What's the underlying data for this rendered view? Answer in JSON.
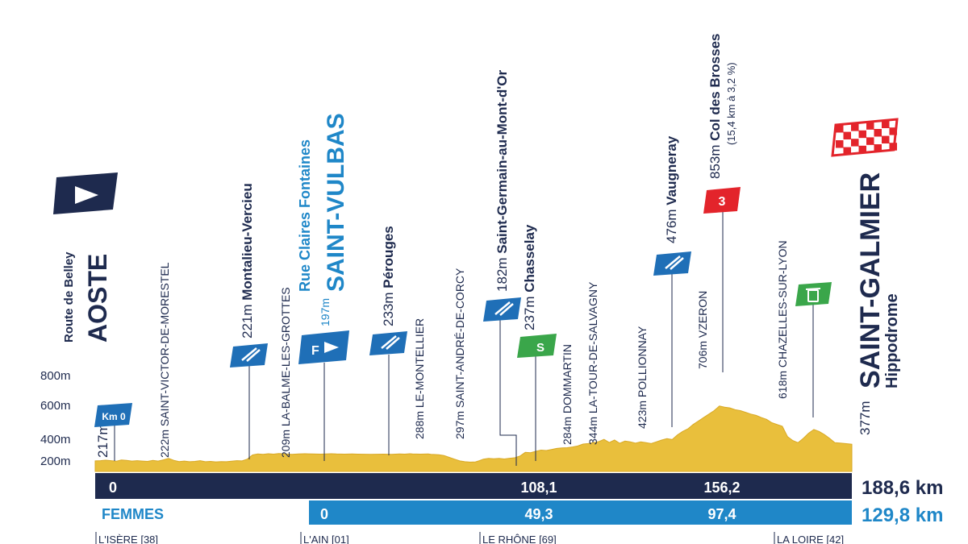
{
  "chart_data": {
    "type": "area",
    "y_ticks": [
      "200m",
      "400m",
      "600m",
      "800m"
    ],
    "ylim": [
      100,
      1000
    ],
    "xlim": [
      0,
      188.6
    ],
    "profile": [
      [
        0,
        220
      ],
      [
        4,
        222
      ],
      [
        8,
        228
      ],
      [
        12,
        222
      ],
      [
        16,
        216
      ],
      [
        20,
        230
      ],
      [
        24,
        226
      ],
      [
        28,
        218
      ],
      [
        32,
        222
      ],
      [
        36,
        218
      ],
      [
        40,
        214
      ],
      [
        44,
        226
      ],
      [
        48,
        218
      ],
      [
        52,
        232
      ],
      [
        56,
        248
      ],
      [
        60,
        226
      ],
      [
        64,
        212
      ],
      [
        68,
        218
      ],
      [
        72,
        210
      ],
      [
        76,
        214
      ],
      [
        80,
        222
      ],
      [
        84,
        210
      ],
      [
        88,
        214
      ],
      [
        92,
        208
      ],
      [
        96,
        212
      ],
      [
        100,
        210
      ],
      [
        104,
        216
      ],
      [
        108,
        222
      ],
      [
        112,
        220
      ],
      [
        116,
        240
      ],
      [
        120,
        288
      ],
      [
        124,
        300
      ],
      [
        128,
        296
      ],
      [
        132,
        302
      ],
      [
        136,
        298
      ],
      [
        140,
        304
      ],
      [
        145,
        300
      ],
      [
        150,
        296
      ],
      [
        155,
        300
      ],
      [
        160,
        302
      ],
      [
        166,
        300
      ],
      [
        172,
        298
      ],
      [
        176,
        300
      ],
      [
        180,
        302
      ],
      [
        184,
        300
      ],
      [
        190,
        298
      ],
      [
        196,
        300
      ],
      [
        200,
        298
      ],
      [
        210,
        296
      ],
      [
        220,
        298
      ],
      [
        226,
        296
      ],
      [
        232,
        300
      ],
      [
        236,
        298
      ],
      [
        240,
        302
      ],
      [
        242,
        300
      ],
      [
        248,
        298
      ],
      [
        254,
        300
      ],
      [
        256,
        296
      ],
      [
        258,
        294
      ],
      [
        262,
        290
      ],
      [
        266,
        282
      ],
      [
        270,
        260
      ],
      [
        274,
        240
      ],
      [
        278,
        220
      ],
      [
        282,
        210
      ],
      [
        286,
        206
      ],
      [
        290,
        208
      ],
      [
        293,
        222
      ],
      [
        296,
        240
      ],
      [
        300,
        248
      ],
      [
        304,
        244
      ],
      [
        308,
        248
      ],
      [
        312,
        242
      ],
      [
        316,
        250
      ],
      [
        320,
        256
      ],
      [
        324,
        276
      ],
      [
        328,
        318
      ],
      [
        332,
        314
      ],
      [
        336,
        330
      ],
      [
        340,
        344
      ],
      [
        344,
        340
      ],
      [
        348,
        352
      ],
      [
        352,
        364
      ],
      [
        356,
        370
      ],
      [
        360,
        372
      ],
      [
        364,
        380
      ],
      [
        368,
        392
      ],
      [
        372,
        414
      ],
      [
        376,
        420
      ],
      [
        380,
        432
      ],
      [
        384,
        442
      ],
      [
        388,
        468
      ],
      [
        392,
        432
      ],
      [
        396,
        460
      ],
      [
        400,
        423
      ],
      [
        404,
        448
      ],
      [
        408,
        440
      ],
      [
        412,
        425
      ],
      [
        416,
        440
      ],
      [
        420,
        430
      ],
      [
        424,
        420
      ],
      [
        428,
        440
      ],
      [
        432,
        460
      ],
      [
        436,
        476
      ],
      [
        440,
        466
      ],
      [
        444,
        520
      ],
      [
        448,
        560
      ],
      [
        452,
        590
      ],
      [
        456,
        640
      ],
      [
        460,
        680
      ],
      [
        464,
        720
      ],
      [
        468,
        760
      ],
      [
        472,
        800
      ],
      [
        476,
        853
      ],
      [
        480,
        840
      ],
      [
        484,
        832
      ],
      [
        488,
        810
      ],
      [
        492,
        800
      ],
      [
        496,
        780
      ],
      [
        500,
        760
      ],
      [
        504,
        745
      ],
      [
        508,
        720
      ],
      [
        512,
        700
      ],
      [
        516,
        660
      ],
      [
        520,
        640
      ],
      [
        524,
        620
      ],
      [
        528,
        500
      ],
      [
        532,
        455
      ],
      [
        536,
        430
      ],
      [
        540,
        480
      ],
      [
        544,
        540
      ],
      [
        548,
        582
      ],
      [
        552,
        560
      ],
      [
        556,
        524
      ],
      [
        560,
        480
      ],
      [
        564,
        430
      ],
      [
        568,
        425
      ],
      [
        572,
        420
      ],
      [
        577,
        412
      ]
    ],
    "profile_x_scale": [
      0,
      577,
      0,
      188.6
    ],
    "places": [
      {
        "km": 0,
        "alt_label": "217m",
        "name": "AOSTE",
        "sub": "Route de Belley"
      },
      {
        "km": 8,
        "alt_label": "222m",
        "name": "SAINT-VICTOR-DE-MORESTEL"
      },
      {
        "km": 18,
        "alt_label": "221m",
        "name": "Montalieu-Vercieu"
      },
      {
        "km": 23,
        "alt_label": "209m",
        "name": "LA-BALME-LES-GROTTES"
      },
      {
        "km": 28,
        "alt_label": "197m",
        "name": "SAINT-VULBAS",
        "sub": "Rue Claires Fontaines"
      },
      {
        "km": 35,
        "alt_label": "233m",
        "name": "Pérouges"
      },
      {
        "km": 42,
        "alt_label": "288m",
        "name": "LE-MONTELLIER"
      },
      {
        "km": 54,
        "alt_label": "297m",
        "name": "SAINT-ANDRÉ-DE-CORCY"
      },
      {
        "km": 80,
        "alt_label": "182m",
        "name": "Saint-Germain-au-Mont-d'Or"
      },
      {
        "km": 86,
        "alt_label": "237m",
        "name": "Chasselay"
      },
      {
        "km": 94,
        "alt_label": "284m",
        "name": "DOMMARTIN"
      },
      {
        "km": 100,
        "alt_label": "344m",
        "name": "LA-TOUR-DE-SALVAGNY"
      },
      {
        "km": 110,
        "alt_label": "423m",
        "name": "POLLIONNAY"
      },
      {
        "km": 116,
        "alt_label": "476m",
        "name": "Vaugneray"
      },
      {
        "km": 127,
        "alt_label": "706m",
        "name": "VZERON"
      },
      {
        "km": 134,
        "alt_label": "853m",
        "name": "Col des Brosses",
        "sub": "(15,4 km à 3,2 %)"
      },
      {
        "km": 156.2,
        "alt_label": "618m",
        "name": "CHAZELLES-SUR-LYON"
      },
      {
        "km": 188.6,
        "alt_label": "377m",
        "name": "SAINT-GALMIER",
        "sub": "Hippodrome"
      }
    ],
    "markers": [
      {
        "type": "km0",
        "label": "Km 0"
      },
      {
        "type": "climb-cat",
        "label": "3"
      },
      {
        "type": "sprint",
        "label": "S"
      },
      {
        "type": "start-femmes",
        "label": "F"
      }
    ],
    "distance_bars": [
      {
        "name": "",
        "marks": [
          {
            "km": 0,
            "label": "0"
          },
          {
            "km": 108.1,
            "label": "108,1"
          },
          {
            "km": 156.2,
            "label": "156,2"
          }
        ],
        "total": "188,6 km",
        "color": "#1e2a4e"
      },
      {
        "name": "FEMMES",
        "marks": [
          {
            "km": 0,
            "label": "0"
          },
          {
            "km": 49.3,
            "label": "49,3"
          },
          {
            "km": 97.4,
            "label": "97,4"
          }
        ],
        "total": "129,8 km",
        "color": "#1f87c8"
      }
    ],
    "departments": [
      "L'ISÈRE [38]",
      "L'AIN [01]",
      "LE RHÔNE [69]",
      "LA LOIRE [42]"
    ],
    "colors": {
      "terrain": "#e9bf3c",
      "navy": "#1e2a4e",
      "blue": "#1f87c8",
      "red": "#e3242b",
      "green": "#3aa64a"
    }
  }
}
